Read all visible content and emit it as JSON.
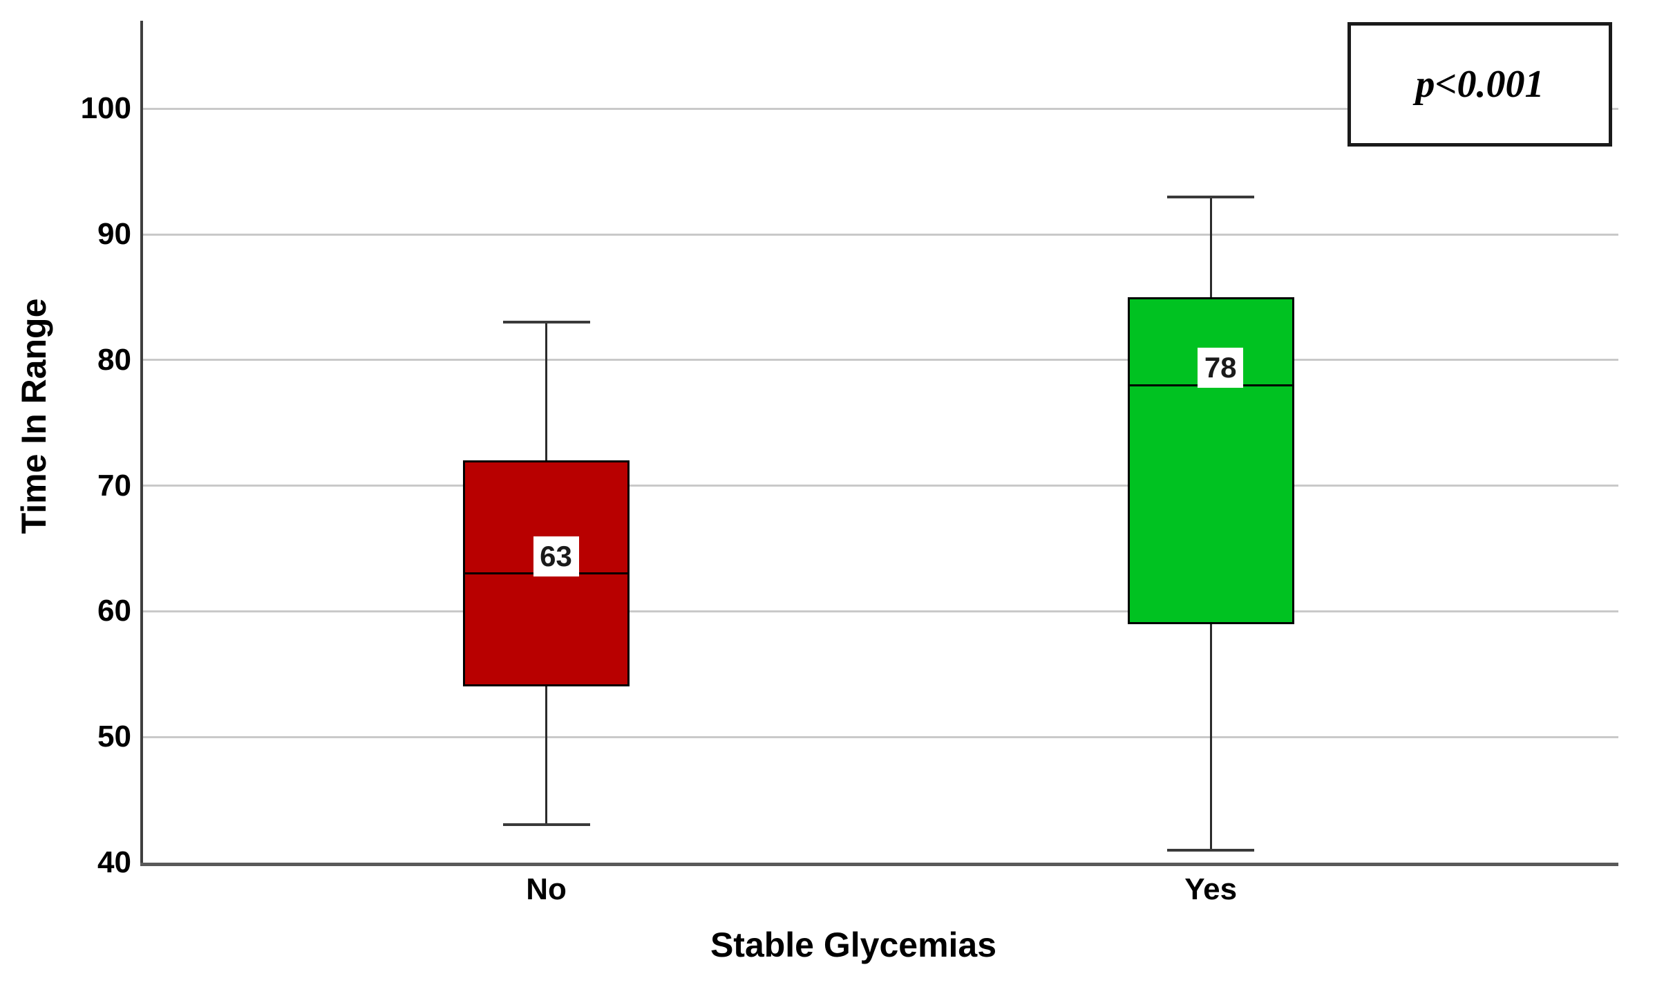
{
  "chart_data": {
    "type": "boxplot",
    "title": "",
    "xlabel": "Stable Glycemias",
    "ylabel": "Time In Range",
    "categories": [
      "No",
      "Yes"
    ],
    "yticks": [
      40,
      50,
      60,
      70,
      80,
      90,
      100
    ],
    "ylim": [
      40,
      107
    ],
    "grid": "horizontal",
    "legend": "none",
    "annotation": "p<0.001",
    "series": [
      {
        "name": "No",
        "color": "#b80000",
        "whisker_low": 43,
        "q1": 54,
        "median": 63,
        "q3": 72,
        "whisker_high": 83,
        "median_label": "63"
      },
      {
        "name": "Yes",
        "color": "#00c221",
        "whisker_low": 41,
        "q1": 59,
        "median": 78,
        "q3": 85,
        "whisker_high": 93,
        "median_label": "78"
      }
    ]
  }
}
